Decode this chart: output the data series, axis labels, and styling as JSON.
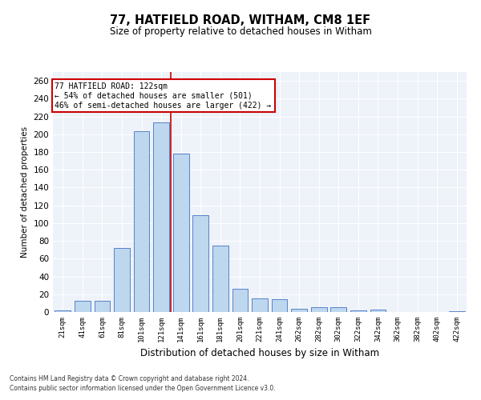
{
  "title1": "77, HATFIELD ROAD, WITHAM, CM8 1EF",
  "title2": "Size of property relative to detached houses in Witham",
  "xlabel": "Distribution of detached houses by size in Witham",
  "ylabel": "Number of detached properties",
  "categories": [
    "21sqm",
    "41sqm",
    "61sqm",
    "81sqm",
    "101sqm",
    "121sqm",
    "141sqm",
    "161sqm",
    "181sqm",
    "201sqm",
    "221sqm",
    "241sqm",
    "262sqm",
    "282sqm",
    "302sqm",
    "322sqm",
    "342sqm",
    "362sqm",
    "382sqm",
    "402sqm",
    "422sqm"
  ],
  "values": [
    2,
    13,
    13,
    72,
    203,
    213,
    178,
    109,
    75,
    26,
    15,
    14,
    4,
    5,
    5,
    2,
    3,
    0,
    0,
    0,
    1
  ],
  "bar_color": "#bdd7ee",
  "bar_edge_color": "#4472c4",
  "highlight_index": 5,
  "highlight_line_color": "#cc0000",
  "annotation_text": "77 HATFIELD ROAD: 122sqm\n← 54% of detached houses are smaller (501)\n46% of semi-detached houses are larger (422) →",
  "annotation_box_color": "#ffffff",
  "annotation_box_edge_color": "#cc0000",
  "ylim": [
    0,
    270
  ],
  "yticks": [
    0,
    20,
    40,
    60,
    80,
    100,
    120,
    140,
    160,
    180,
    200,
    220,
    240,
    260
  ],
  "bg_color": "#eef2f9",
  "grid_color": "#ffffff",
  "footer1": "Contains HM Land Registry data © Crown copyright and database right 2024.",
  "footer2": "Contains public sector information licensed under the Open Government Licence v3.0."
}
